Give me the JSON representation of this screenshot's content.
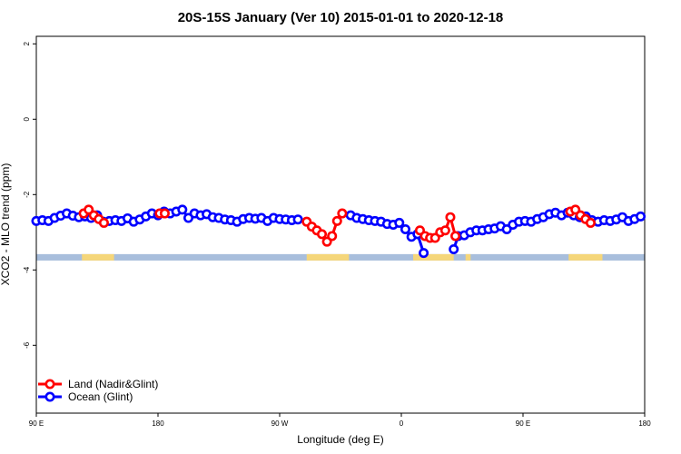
{
  "chart_data": {
    "type": "line",
    "title": "20S-15S January (Ver 10)   2015-01-01 to 2020-12-18",
    "xlabel": "Longitude (deg E)",
    "ylabel": "XCO2 - MLO trend (ppm)",
    "xlim": [
      0,
      360
    ],
    "ylim": [
      -7.8,
      2.2
    ],
    "x_ticks": [
      {
        "value": 0,
        "label": "90 E"
      },
      {
        "value": 72,
        "label": "180"
      },
      {
        "value": 144,
        "label": "90 W"
      },
      {
        "value": 216,
        "label": "0"
      },
      {
        "value": 288,
        "label": "90 E"
      },
      {
        "value": 360,
        "label": "180"
      }
    ],
    "y_ticks": [
      {
        "value": 2,
        "label": "2"
      },
      {
        "value": 0,
        "label": "0"
      },
      {
        "value": -2,
        "label": "-2"
      },
      {
        "value": -4,
        "label": "-4"
      },
      {
        "value": -6,
        "label": "-6"
      }
    ],
    "legend": [
      {
        "name": "Land (Nadir&Glint)",
        "color": "#ff0000"
      },
      {
        "name": "Ocean (Glint)",
        "color": "#0000ff"
      }
    ],
    "surface_band": {
      "y_range": [
        -3.58,
        -3.75
      ],
      "ocean_color": "#a8bedc",
      "land_color": "#f5d67a",
      "land_segments": [
        [
          27,
          46
        ],
        [
          160,
          185
        ],
        [
          223,
          247
        ],
        [
          254,
          257
        ],
        [
          315,
          335
        ]
      ]
    },
    "series": [
      {
        "name": "Land (Nadir&Glint)",
        "color": "#ff0000",
        "segments": [
          {
            "x": [
              28,
              31,
              34,
              37,
              40
            ],
            "y": [
              -2.5,
              -2.4,
              -2.55,
              -2.65,
              -2.75
            ]
          },
          {
            "x": [
              73,
              76
            ],
            "y": [
              -2.5,
              -2.5
            ]
          },
          {
            "x": [
              160,
              163,
              166,
              169,
              172,
              175,
              178,
              181
            ],
            "y": [
              -2.72,
              -2.85,
              -2.95,
              -3.05,
              -3.25,
              -3.1,
              -2.7,
              -2.5
            ]
          },
          {
            "x": [
              227,
              230,
              233,
              236,
              239,
              242,
              245,
              248
            ],
            "y": [
              -2.95,
              -3.1,
              -3.15,
              -3.15,
              -3.0,
              -2.95,
              -2.6,
              -3.1
            ]
          },
          {
            "x": [
              316,
              319,
              322,
              325,
              328
            ],
            "y": [
              -2.45,
              -2.4,
              -2.55,
              -2.65,
              -2.75
            ]
          }
        ]
      },
      {
        "name": "Ocean (Glint)",
        "color": "#0000ff",
        "segments": [
          {
            "x": [
              0,
              3.6,
              7.2,
              10.8,
              14.4,
              18,
              21.6,
              25.2,
              28.8,
              32.4,
              36,
              39.6,
              43.2,
              46.8,
              50.4,
              54,
              57.6,
              61.2,
              64.8,
              68.4,
              72,
              75.6,
              79.2,
              82.8,
              86.4,
              90,
              93.6,
              97.2,
              100.8,
              104.4,
              108,
              111.6,
              115.2,
              118.8,
              122.4,
              126,
              129.6,
              133.2,
              136.8,
              140.4,
              144,
              147.6,
              151.2,
              154.8
            ],
            "y": [
              -2.7,
              -2.68,
              -2.7,
              -2.62,
              -2.56,
              -2.5,
              -2.56,
              -2.6,
              -2.58,
              -2.62,
              -2.55,
              -2.72,
              -2.7,
              -2.68,
              -2.7,
              -2.63,
              -2.72,
              -2.66,
              -2.58,
              -2.5,
              -2.55,
              -2.45,
              -2.5,
              -2.45,
              -2.4,
              -2.62,
              -2.5,
              -2.55,
              -2.52,
              -2.6,
              -2.62,
              -2.66,
              -2.68,
              -2.72,
              -2.65,
              -2.62,
              -2.64,
              -2.62,
              -2.7,
              -2.62,
              -2.65,
              -2.66,
              -2.68,
              -2.66
            ]
          },
          {
            "x": [
              186,
              189.6,
              193.2,
              196.8,
              200.4,
              204,
              207.6,
              211.2,
              214.8,
              218.4,
              222,
              225.6
            ],
            "y": [
              -2.55,
              -2.62,
              -2.65,
              -2.68,
              -2.7,
              -2.72,
              -2.78,
              -2.8,
              -2.75,
              -2.92,
              -3.12,
              -3.05
            ]
          },
          {
            "x": [
              225.6,
              229.2
            ],
            "y": [
              -3.05,
              -3.55
            ]
          },
          {
            "x": [
              247,
              249.6,
              253.2,
              256.8,
              260.4,
              264,
              267.6,
              271.2,
              274.8,
              278.4,
              282,
              285.6,
              289.2,
              292.8,
              296.4,
              300,
              303.6,
              307.2,
              310.8,
              314.4,
              318,
              321.6,
              325.2,
              328.8,
              332.4,
              336,
              339.6,
              343.2,
              346.8,
              350.4,
              354,
              357.6
            ],
            "y": [
              -3.45,
              -3.1,
              -3.08,
              -3.0,
              -2.95,
              -2.95,
              -2.92,
              -2.9,
              -2.84,
              -2.92,
              -2.8,
              -2.72,
              -2.7,
              -2.72,
              -2.65,
              -2.6,
              -2.52,
              -2.48,
              -2.55,
              -2.48,
              -2.55,
              -2.6,
              -2.58,
              -2.68,
              -2.72,
              -2.68,
              -2.7,
              -2.66,
              -2.6,
              -2.7,
              -2.65,
              -2.58
            ]
          }
        ]
      }
    ]
  }
}
